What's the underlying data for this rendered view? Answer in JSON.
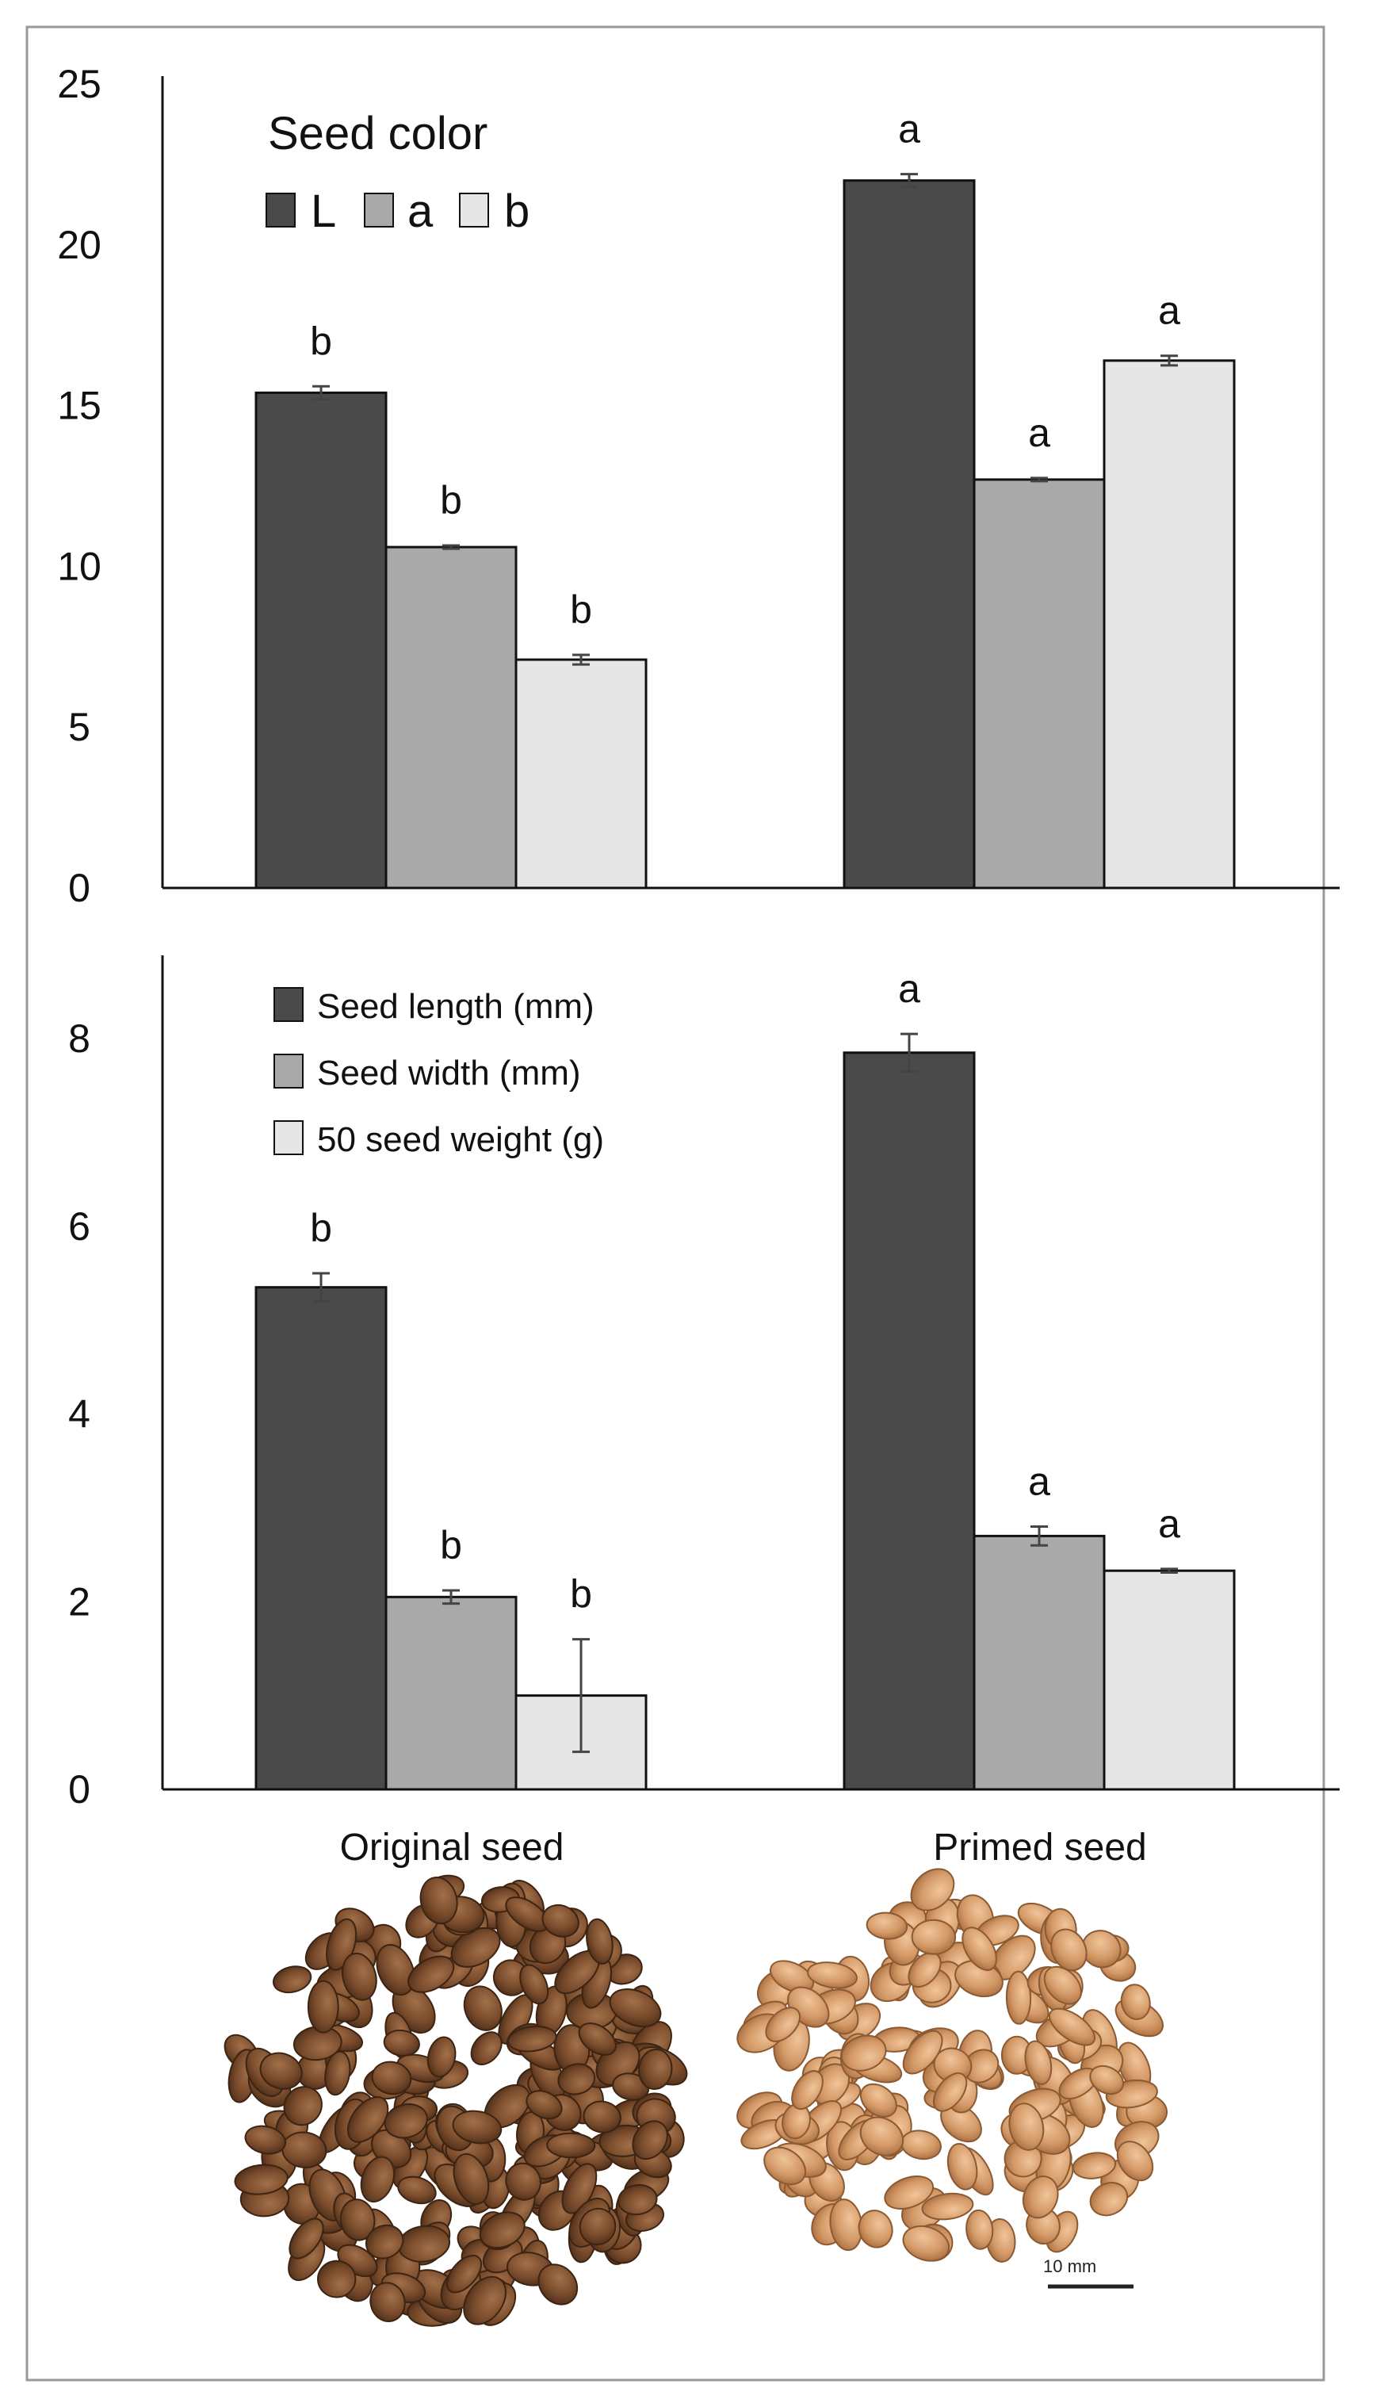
{
  "chart_data": [
    {
      "type": "bar",
      "categories": [
        "Original seed",
        "Primed seed"
      ],
      "legend_title": "Seed color",
      "ylim": [
        0,
        25
      ],
      "yticks": [
        "0",
        "5",
        "10",
        "15",
        "20",
        "25"
      ],
      "series": [
        {
          "name": "L",
          "values": [
            15.4,
            22.0
          ],
          "errors": [
            0.2,
            0.2
          ],
          "letters": [
            "b",
            "a"
          ],
          "color": "#4a4a4a"
        },
        {
          "name": "a",
          "values": [
            10.6,
            12.7
          ],
          "errors": [
            0.05,
            0.05
          ],
          "letters": [
            "b",
            "a"
          ],
          "color": "#a9a9a9"
        },
        {
          "name": "b",
          "values": [
            7.1,
            16.4
          ],
          "errors": [
            0.15,
            0.15
          ],
          "letters": [
            "b",
            "a"
          ],
          "color": "#e6e6e6"
        }
      ]
    },
    {
      "type": "bar",
      "categories": [
        "Original seed",
        "Primed seed"
      ],
      "ylim": [
        0,
        9
      ],
      "yticks": [
        "0",
        "2",
        "4",
        "6",
        "8"
      ],
      "series": [
        {
          "name": "Seed length (mm)",
          "values": [
            5.35,
            7.85
          ],
          "errors": [
            0.15,
            0.2
          ],
          "letters": [
            "b",
            "a"
          ],
          "color": "#4a4a4a"
        },
        {
          "name": "Seed width (mm)",
          "values": [
            2.05,
            2.7
          ],
          "errors": [
            0.07,
            0.1
          ],
          "letters": [
            "b",
            "a"
          ],
          "color": "#a9a9a9"
        },
        {
          "name": "50 seed weight (g)",
          "values": [
            1.0,
            2.33
          ],
          "errors": [
            0.6,
            0.02
          ],
          "letters": [
            "b",
            "a"
          ],
          "color": "#e6e6e6"
        }
      ]
    }
  ],
  "photos": {
    "scale_label": "10 mm"
  }
}
